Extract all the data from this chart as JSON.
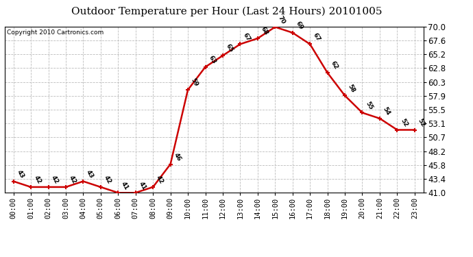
{
  "title": "Outdoor Temperature per Hour (Last 24 Hours) 20101005",
  "copyright": "Copyright 2010 Cartronics.com",
  "hours": [
    "00:00",
    "01:00",
    "02:00",
    "03:00",
    "04:00",
    "05:00",
    "06:00",
    "07:00",
    "08:00",
    "09:00",
    "10:00",
    "11:00",
    "12:00",
    "13:00",
    "14:00",
    "15:00",
    "16:00",
    "17:00",
    "18:00",
    "19:00",
    "20:00",
    "21:00",
    "22:00",
    "23:00"
  ],
  "temps": [
    43,
    42,
    42,
    42,
    43,
    42,
    41,
    41,
    42,
    46,
    59,
    63,
    65,
    67,
    68,
    70,
    69,
    67,
    62,
    58,
    55,
    54,
    52,
    52
  ],
  "ylim_min": 41.0,
  "ylim_max": 70.0,
  "yticks": [
    41.0,
    43.4,
    45.8,
    48.2,
    50.7,
    53.1,
    55.5,
    57.9,
    60.3,
    62.8,
    65.2,
    67.6,
    70.0
  ],
  "line_color": "#cc0000",
  "marker_color": "#cc0000",
  "bg_color": "#ffffff",
  "grid_color": "#bbbbbb",
  "title_fontsize": 11,
  "copyright_fontsize": 6.5,
  "label_fontsize": 6.5,
  "tick_fontsize": 7.5,
  "ytick_fontsize": 8.5
}
